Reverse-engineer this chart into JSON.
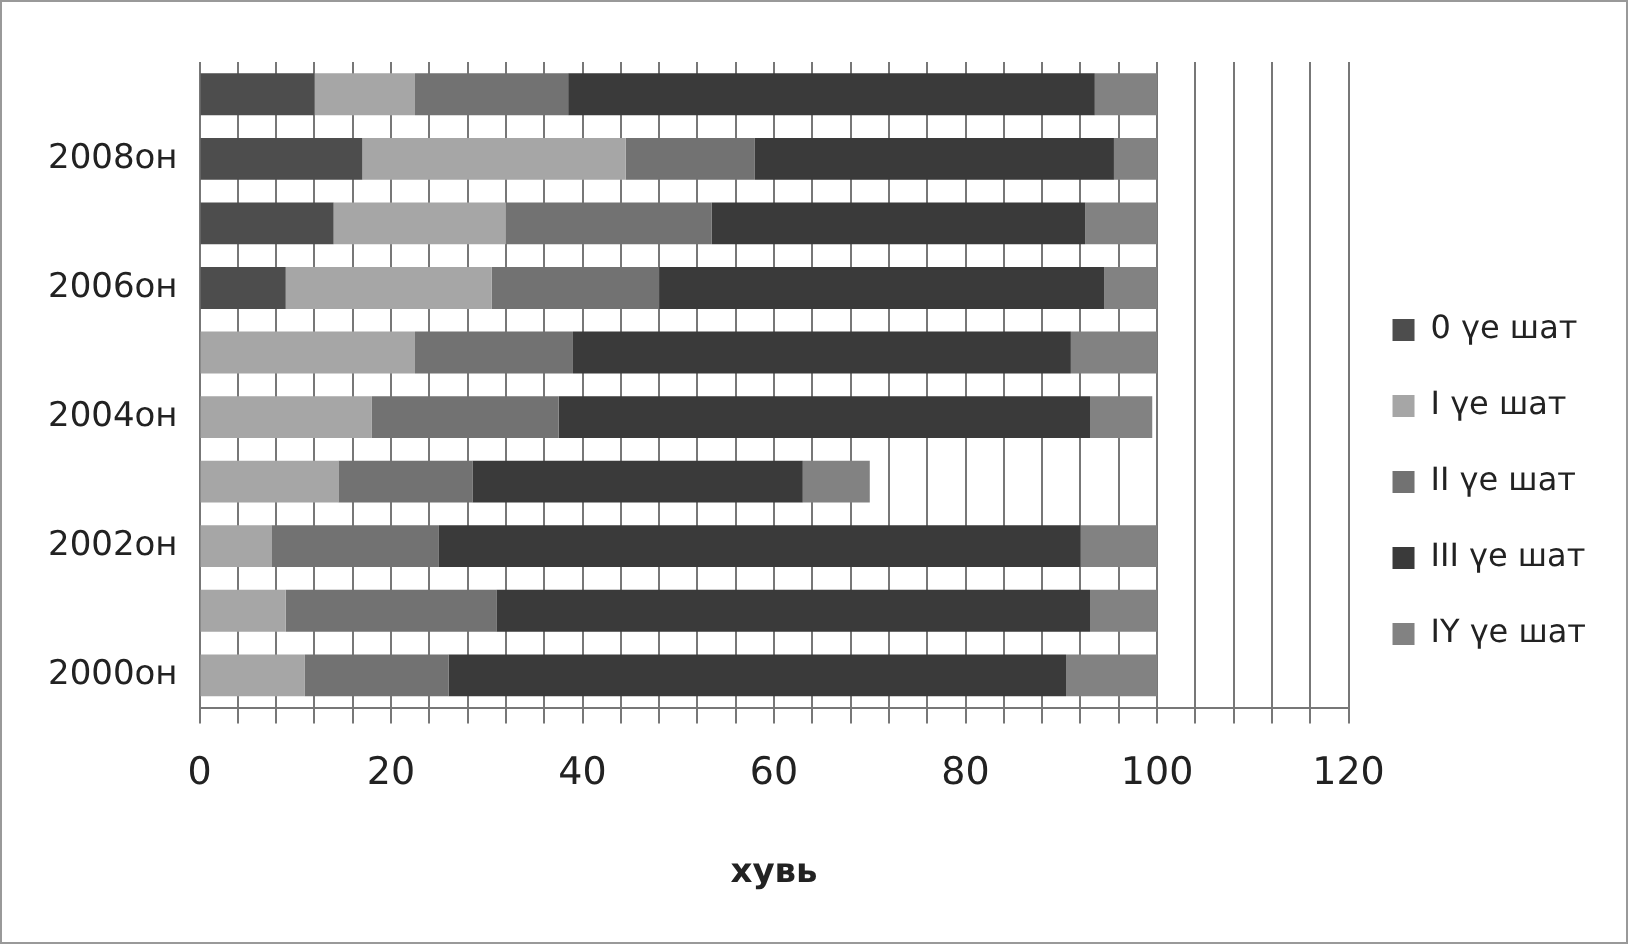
{
  "chart_data": {
    "type": "bar",
    "orientation": "horizontal",
    "stacked": true,
    "xlabel": "хувь",
    "categories": [
      null,
      "2008он",
      null,
      "2006он",
      null,
      "2004он",
      null,
      "2002он",
      null,
      "2000он"
    ],
    "series": [
      {
        "name": "0 үе шат",
        "color": "#4d4d4d",
        "values": [
          12,
          17,
          14,
          9,
          0,
          0,
          0,
          0,
          0,
          0
        ]
      },
      {
        "name": "I үе шат",
        "color": "#a6a6a6",
        "values": [
          10.5,
          27.5,
          18,
          21.5,
          22.5,
          18,
          14.5,
          7.5,
          9,
          11
        ]
      },
      {
        "name": "II үе шат",
        "color": "#727272",
        "values": [
          16,
          13.5,
          21.5,
          17.5,
          16.5,
          19.5,
          14,
          17.5,
          22,
          15
        ]
      },
      {
        "name": "III үе шат",
        "color": "#3a3a3a",
        "values": [
          55,
          37.5,
          39,
          46.5,
          52,
          55.5,
          34.5,
          67,
          62,
          64.5
        ]
      },
      {
        "name": "IY үе шат",
        "color": "#828282",
        "values": [
          6.5,
          4.5,
          7.5,
          5.5,
          9,
          6.5,
          7,
          8,
          7,
          9.5
        ]
      }
    ],
    "xlim": [
      0,
      120
    ],
    "xticks": [
      0,
      {
        "value": 4,
        "label": null
      },
      {
        "value": 8,
        "label": null
      },
      {
        "value": 12,
        "label": null
      },
      {
        "value": 16,
        "label": null
      },
      20,
      {
        "value": 24,
        "label": null
      },
      {
        "value": 28,
        "label": null
      },
      {
        "value": 32,
        "label": null
      },
      {
        "value": 36,
        "label": null
      },
      40,
      {
        "value": 44,
        "label": null
      },
      {
        "value": 48,
        "label": null
      },
      {
        "value": 52,
        "label": null
      },
      {
        "value": 56,
        "label": null
      },
      60,
      {
        "value": 64,
        "label": null
      },
      {
        "value": 68,
        "label": null
      },
      {
        "value": 72,
        "label": null
      },
      {
        "value": 76,
        "label": null
      },
      80,
      {
        "value": 84,
        "label": null
      },
      {
        "value": 88,
        "label": null
      },
      {
        "value": 92,
        "label": null
      },
      {
        "value": 96,
        "label": null
      },
      100,
      {
        "value": 104,
        "label": null
      },
      {
        "value": 108,
        "label": null
      },
      {
        "value": 112,
        "label": null
      },
      {
        "value": 116,
        "label": null
      },
      120
    ],
    "grid": "x",
    "legend": "right"
  }
}
